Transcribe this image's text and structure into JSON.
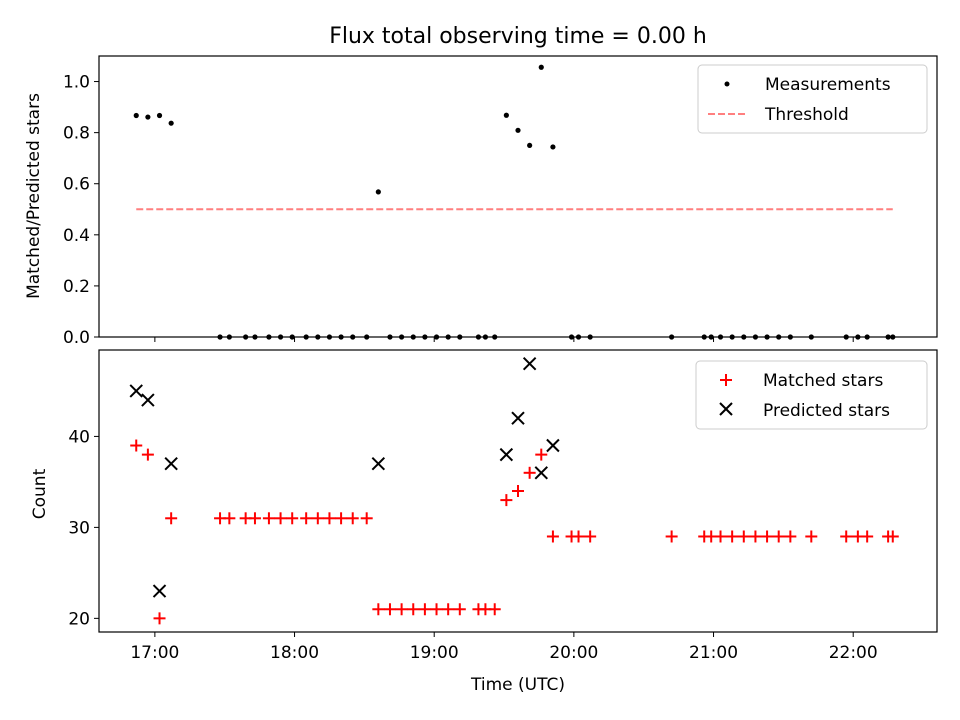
{
  "title": "Flux total observing time = 0.00 h",
  "xlabel": "Time (UTC)",
  "x_tick_labels": [
    "17:00",
    "18:00",
    "19:00",
    "20:00",
    "21:00",
    "22:00"
  ],
  "chart_data": [
    {
      "type": "scatter",
      "title": "Flux total observing time = 0.00 h",
      "xlabel": "",
      "ylabel": "Matched/Predicted stars",
      "xlim": [
        "16:36",
        "22:36"
      ],
      "ylim": [
        0,
        1.1
      ],
      "y_ticks": [
        "0.0",
        "0.2",
        "0.4",
        "0.6",
        "0.8",
        "1.0"
      ],
      "legend_placement": "top-right",
      "series": [
        {
          "name": "Measurements",
          "color": "#000000",
          "marker": "dot",
          "points": [
            [
              "16:52",
              0.867
            ],
            [
              "16:57",
              0.861
            ],
            [
              "17:02",
              0.867
            ],
            [
              "17:07",
              0.837
            ],
            [
              "17:28",
              0
            ],
            [
              "17:32",
              0
            ],
            [
              "17:39",
              0
            ],
            [
              "17:43",
              0
            ],
            [
              "17:49",
              0
            ],
            [
              "17:54",
              0
            ],
            [
              "17:59",
              0
            ],
            [
              "18:05",
              0
            ],
            [
              "18:10",
              0
            ],
            [
              "18:15",
              0
            ],
            [
              "18:20",
              0
            ],
            [
              "18:25",
              0
            ],
            [
              "18:31",
              0
            ],
            [
              "18:36",
              0.568
            ],
            [
              "18:41",
              0
            ],
            [
              "18:46",
              0
            ],
            [
              "18:51",
              0
            ],
            [
              "18:56",
              0
            ],
            [
              "19:01",
              0
            ],
            [
              "19:06",
              0
            ],
            [
              "19:11",
              0
            ],
            [
              "19:19",
              0
            ],
            [
              "19:22",
              0
            ],
            [
              "19:26",
              0
            ],
            [
              "19:31",
              0.868
            ],
            [
              "19:36",
              0.809
            ],
            [
              "19:41",
              0.75
            ],
            [
              "19:46",
              1.056
            ],
            [
              "19:51",
              0.744
            ],
            [
              "19:59",
              0
            ],
            [
              "20:02",
              0
            ],
            [
              "20:07",
              0
            ],
            [
              "20:42",
              0
            ],
            [
              "20:56",
              0
            ],
            [
              "20:59",
              0
            ],
            [
              "21:03",
              0
            ],
            [
              "21:08",
              0
            ],
            [
              "21:13",
              0
            ],
            [
              "21:18",
              0
            ],
            [
              "21:23",
              0
            ],
            [
              "21:28",
              0
            ],
            [
              "21:33",
              0
            ],
            [
              "21:42",
              0
            ],
            [
              "21:57",
              0
            ],
            [
              "22:02",
              0
            ],
            [
              "22:06",
              0
            ],
            [
              "22:15",
              0
            ],
            [
              "22:17",
              0
            ]
          ]
        },
        {
          "name": "Threshold",
          "color": "#ff7f7f",
          "line_style": "dashed",
          "points": [
            [
              "16:52",
              0.5
            ],
            [
              "22:17",
              0.5
            ]
          ]
        }
      ]
    },
    {
      "type": "scatter",
      "xlabel": "Time (UTC)",
      "ylabel": "Count",
      "xlim": [
        "16:36",
        "22:36"
      ],
      "ylim": [
        18.5,
        49.5
      ],
      "y_ticks": [
        "20",
        "30",
        "40"
      ],
      "legend_placement": "top-right",
      "series": [
        {
          "name": "Matched stars",
          "color": "#ff0000",
          "marker": "plus",
          "points": [
            [
              "16:52",
              39
            ],
            [
              "16:57",
              38
            ],
            [
              "17:02",
              20
            ],
            [
              "17:07",
              31
            ],
            [
              "17:28",
              31
            ],
            [
              "17:32",
              31
            ],
            [
              "17:39",
              31
            ],
            [
              "17:43",
              31
            ],
            [
              "17:49",
              31
            ],
            [
              "17:54",
              31
            ],
            [
              "17:59",
              31
            ],
            [
              "18:05",
              31
            ],
            [
              "18:10",
              31
            ],
            [
              "18:15",
              31
            ],
            [
              "18:20",
              31
            ],
            [
              "18:25",
              31
            ],
            [
              "18:31",
              31
            ],
            [
              "18:36",
              21
            ],
            [
              "18:41",
              21
            ],
            [
              "18:46",
              21
            ],
            [
              "18:51",
              21
            ],
            [
              "18:56",
              21
            ],
            [
              "19:01",
              21
            ],
            [
              "19:06",
              21
            ],
            [
              "19:11",
              21
            ],
            [
              "19:19",
              21
            ],
            [
              "19:22",
              21
            ],
            [
              "19:26",
              21
            ],
            [
              "19:31",
              33
            ],
            [
              "19:36",
              34
            ],
            [
              "19:41",
              36
            ],
            [
              "19:46",
              38
            ],
            [
              "19:51",
              29
            ],
            [
              "19:59",
              29
            ],
            [
              "20:02",
              29
            ],
            [
              "20:07",
              29
            ],
            [
              "20:42",
              29
            ],
            [
              "20:56",
              29
            ],
            [
              "20:59",
              29
            ],
            [
              "21:03",
              29
            ],
            [
              "21:08",
              29
            ],
            [
              "21:13",
              29
            ],
            [
              "21:18",
              29
            ],
            [
              "21:23",
              29
            ],
            [
              "21:28",
              29
            ],
            [
              "21:33",
              29
            ],
            [
              "21:42",
              29
            ],
            [
              "21:57",
              29
            ],
            [
              "22:02",
              29
            ],
            [
              "22:06",
              29
            ],
            [
              "22:15",
              29
            ],
            [
              "22:17",
              29
            ]
          ]
        },
        {
          "name": "Predicted stars",
          "color": "#000000",
          "marker": "x",
          "points": [
            [
              "16:52",
              45
            ],
            [
              "16:57",
              44
            ],
            [
              "17:02",
              23
            ],
            [
              "17:07",
              37
            ],
            [
              "18:36",
              37
            ],
            [
              "19:31",
              38
            ],
            [
              "19:36",
              42
            ],
            [
              "19:41",
              48
            ],
            [
              "19:46",
              36
            ],
            [
              "19:51",
              39
            ]
          ]
        }
      ]
    }
  ]
}
